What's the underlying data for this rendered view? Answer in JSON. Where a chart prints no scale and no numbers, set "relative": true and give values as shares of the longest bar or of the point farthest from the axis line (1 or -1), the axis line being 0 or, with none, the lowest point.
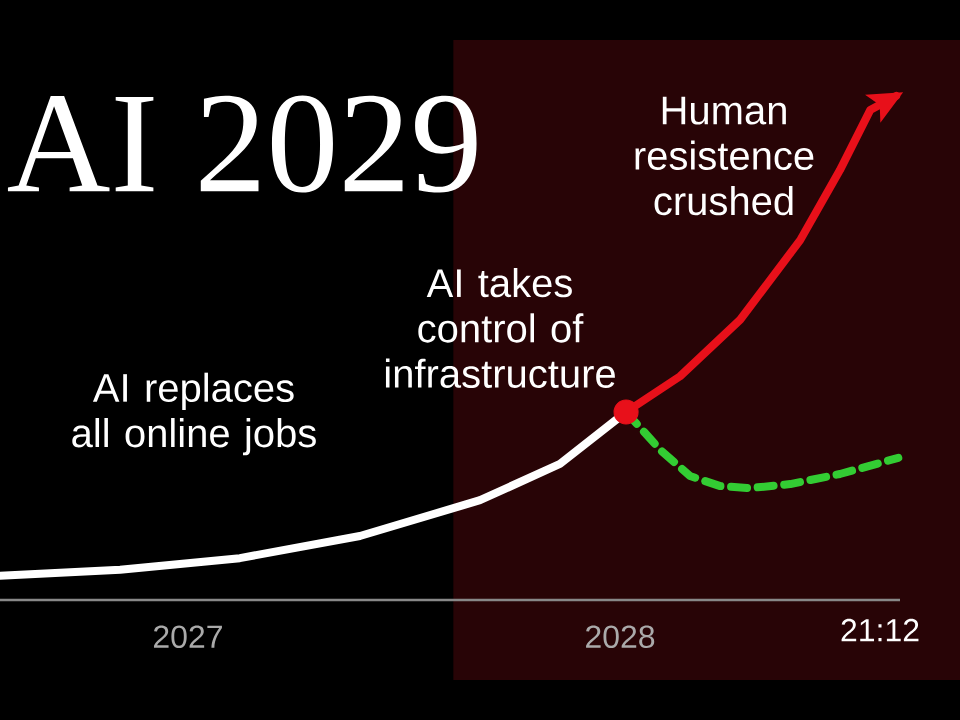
{
  "chart_data": {
    "type": "line",
    "title": "AI 2029",
    "relative": true,
    "xlim": [
      2026.565,
      2028.648
    ],
    "xticks": [
      2027,
      2028
    ],
    "series": [
      {
        "color": "#ffffff",
        "line_style": "solid",
        "x": [
          2026.565,
          2026.843,
          2027.12,
          2027.398,
          2027.676,
          2027.861,
          2028.014
        ],
        "values": [
          0.048,
          0.06,
          0.083,
          0.127,
          0.198,
          0.27,
          0.373
        ]
      },
      {
        "color": "#e8101a",
        "line_style": "solid",
        "x": [
          2028.014,
          2028.139,
          2028.278,
          2028.417,
          2028.509,
          2028.579,
          2028.639
        ],
        "values": [
          0.373,
          0.444,
          0.556,
          0.714,
          0.853,
          0.972,
          1.0
        ]
      },
      {
        "color": "#33cc33",
        "line_style": "dashed",
        "x": [
          2028.014,
          2028.093,
          2028.162,
          2028.232,
          2028.301,
          2028.394,
          2028.509,
          2028.644
        ],
        "values": [
          0.373,
          0.298,
          0.246,
          0.226,
          0.222,
          0.23,
          0.25,
          0.282
        ]
      },
      {
        "type": "scatter",
        "color": "#e8101a",
        "x": [
          2028.014
        ],
        "values": [
          0.373
        ]
      }
    ],
    "annotations": [
      "AI replaces all online jobs",
      "AI takes control of infrastructure",
      "Human resistence crushed",
      "21:12"
    ]
  }
}
